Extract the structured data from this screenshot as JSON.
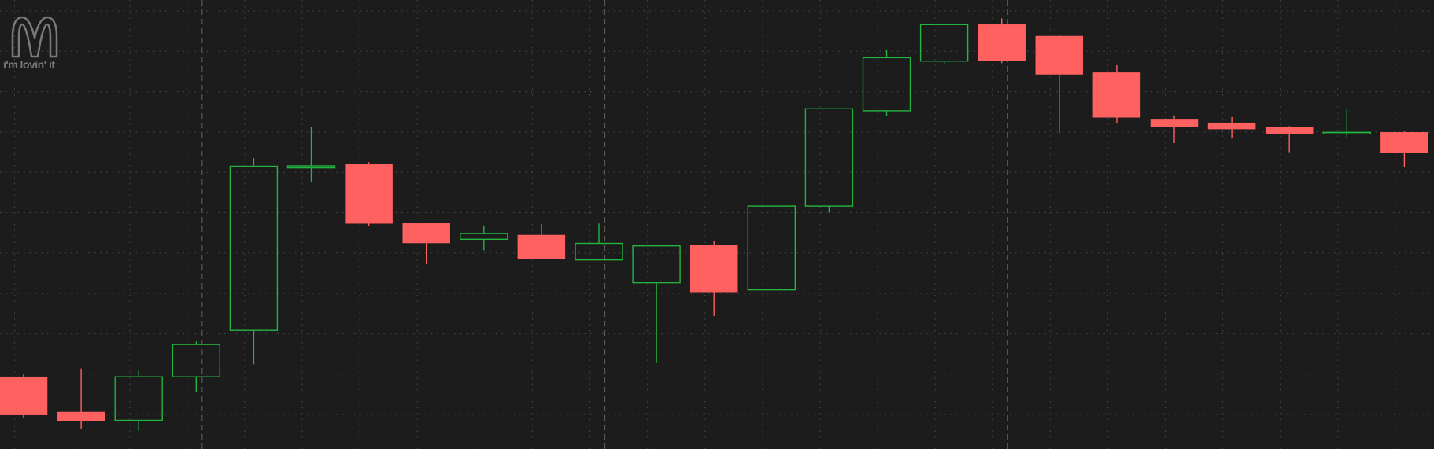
{
  "logo": {
    "icon": "mcdonalds-arches-icon",
    "tagline": "i'm lovin' it",
    "color": "#7a7a7a"
  },
  "colors": {
    "background": "#1c1c1c",
    "grid": "#4a4a4a",
    "period_divider": "#5a5a5a",
    "up": "#23b53f",
    "down": "#ff6060"
  },
  "chart_data": {
    "type": "candlestick",
    "grid": true,
    "x_divider_after_candles": [
      3,
      10,
      17
    ],
    "ylim": [
      0,
      100
    ],
    "candles": [
      {
        "open": 14.0,
        "high": 14.8,
        "low": 4.0,
        "close": 4.8,
        "direction": "down"
      },
      {
        "open": 5.5,
        "high": 16.0,
        "low": 1.5,
        "close": 3.3,
        "direction": "down"
      },
      {
        "open": 3.5,
        "high": 15.5,
        "low": 1.0,
        "close": 14.0,
        "direction": "up"
      },
      {
        "open": 14.0,
        "high": 22.5,
        "low": 10.2,
        "close": 21.8,
        "direction": "up"
      },
      {
        "open": 25.2,
        "high": 66.8,
        "low": 17.0,
        "close": 64.8,
        "direction": "up"
      },
      {
        "open": 64.4,
        "high": 74.3,
        "low": 61.0,
        "close": 64.9,
        "direction": "up"
      },
      {
        "open": 65.4,
        "high": 65.8,
        "low": 50.4,
        "close": 51.0,
        "direction": "down"
      },
      {
        "open": 51.0,
        "high": 51.2,
        "low": 41.2,
        "close": 46.3,
        "direction": "down"
      },
      {
        "open": 47.2,
        "high": 50.5,
        "low": 44.5,
        "close": 48.6,
        "direction": "up"
      },
      {
        "open": 48.2,
        "high": 50.9,
        "low": 42.7,
        "close": 42.5,
        "direction": "down"
      },
      {
        "open": 42.2,
        "high": 51.0,
        "low": 42.2,
        "close": 46.2,
        "direction": "up"
      },
      {
        "open": 36.7,
        "high": 45.6,
        "low": 17.4,
        "close": 45.6,
        "direction": "up"
      },
      {
        "open": 45.8,
        "high": 46.8,
        "low": 28.7,
        "close": 34.5,
        "direction": "down"
      },
      {
        "open": 35.0,
        "high": 55.2,
        "low": 35.0,
        "close": 55.2,
        "direction": "up"
      },
      {
        "open": 55.2,
        "high": 78.7,
        "low": 53.6,
        "close": 78.7,
        "direction": "up"
      },
      {
        "open": 78.2,
        "high": 93.0,
        "low": 77.0,
        "close": 91.0,
        "direction": "up"
      },
      {
        "open": 90.2,
        "high": 99.0,
        "low": 89.3,
        "close": 99.0,
        "direction": "up"
      },
      {
        "open": 99.0,
        "high": 100.5,
        "low": 89.7,
        "close": 90.3,
        "direction": "down"
      },
      {
        "open": 96.2,
        "high": 96.5,
        "low": 72.8,
        "close": 87.0,
        "direction": "down"
      },
      {
        "open": 87.4,
        "high": 89.2,
        "low": 75.3,
        "close": 76.6,
        "direction": "down"
      },
      {
        "open": 76.2,
        "high": 77.1,
        "low": 70.4,
        "close": 74.3,
        "direction": "down"
      },
      {
        "open": 75.3,
        "high": 76.7,
        "low": 71.5,
        "close": 73.8,
        "direction": "down"
      },
      {
        "open": 74.3,
        "high": 74.5,
        "low": 68.2,
        "close": 72.7,
        "direction": "down"
      },
      {
        "open": 73.0,
        "high": 78.7,
        "low": 71.8,
        "close": 73.0,
        "direction": "up"
      },
      {
        "open": 73.0,
        "high": 73.2,
        "low": 64.6,
        "close": 68.0,
        "direction": "down"
      }
    ]
  }
}
